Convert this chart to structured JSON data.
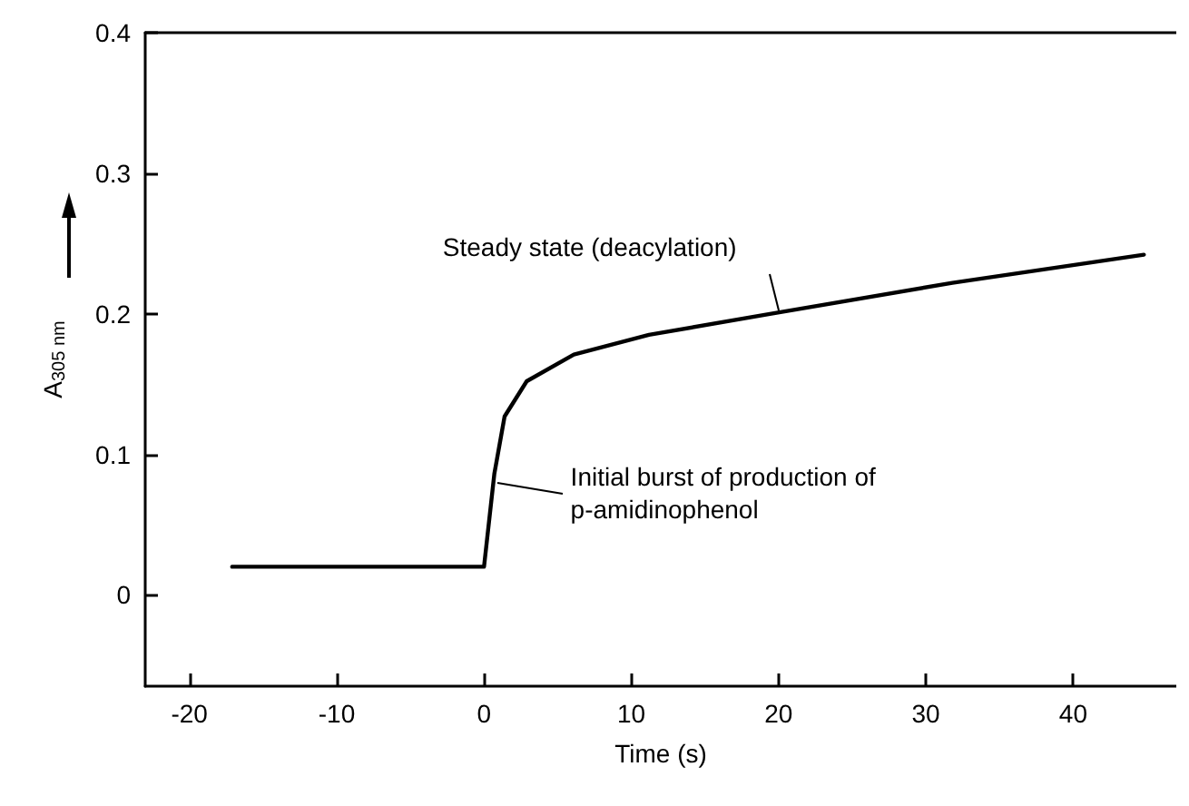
{
  "chart_data": {
    "type": "line",
    "xlabel": "Time (s)",
    "ylabel": "A$_{305 nm}$",
    "x": [
      -17.1,
      -10,
      0,
      0.7,
      1.4,
      2.9,
      6.1,
      11.2,
      19.5,
      31.8,
      44.8
    ],
    "series": [
      {
        "color": "#000000",
        "values": [
          0.02,
          0.02,
          0.02,
          0.086,
          0.127,
          0.152,
          0.171,
          0.185,
          0.2,
          0.222,
          0.242
        ]
      }
    ],
    "xlim": [
      -23,
      47
    ],
    "xticks": [
      -20,
      -10,
      0,
      10,
      20,
      30,
      40
    ],
    "ylim": [
      -0.065,
      0.4
    ],
    "yticks": [
      0,
      0.1,
      0.2,
      0.3,
      0.4
    ],
    "marker": "none",
    "line_style": "solid",
    "annotations": [
      {
        "text": "Steady state (deacylation)",
        "x": 20,
        "y": 0.2
      },
      {
        "text": "Initial burst of production of p-amidinophenol",
        "x": 0.7,
        "y": 0.08
      }
    ]
  }
}
